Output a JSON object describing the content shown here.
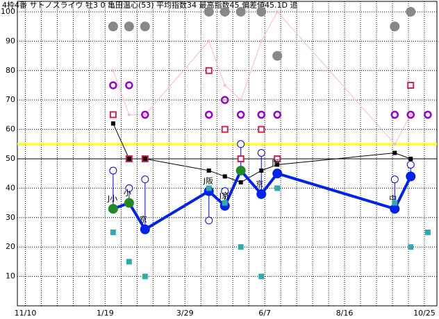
{
  "chart_data": {
    "type": "line",
    "title": "4枠4番 サトノスライヴ 牡3 0 亀田温心(53) 平均指数34 最高指数45 偏差値45.1D 追",
    "x": [
      77,
      91,
      105,
      161,
      175,
      189,
      207,
      221,
      324,
      338,
      353
    ],
    "xlim": [
      -7,
      361
    ],
    "xticks": [
      {
        "value": 0,
        "label": "11/10"
      },
      {
        "value": 70,
        "label": "1/19"
      },
      {
        "value": 140,
        "label": "3/29"
      },
      {
        "value": 210,
        "label": "6/7"
      },
      {
        "value": 280,
        "label": "8/16"
      },
      {
        "value": 350,
        "label": "10/25"
      }
    ],
    "ylim": [
      0,
      104
    ],
    "yticks": [
      10,
      20,
      30,
      40,
      50,
      60,
      70,
      80,
      90,
      100
    ],
    "grid": true,
    "reference_lines": [
      {
        "value": 55,
        "color": "#ffff22"
      },
      {
        "value": 50,
        "color": "#000000"
      }
    ],
    "series": [
      {
        "marker": "big-dot",
        "line": false,
        "color": "#888888",
        "values": [
          95,
          95,
          95,
          100,
          100,
          100,
          100,
          85,
          95,
          100,
          null
        ]
      },
      {
        "marker": "small-dot",
        "line": true,
        "color": "#ffb6c8",
        "values": [
          80,
          65,
          65,
          90,
          75,
          70,
          90,
          100,
          55,
          65,
          null
        ]
      },
      {
        "marker": "ring",
        "line": false,
        "color": "#9900cc",
        "values": [
          75,
          75,
          65,
          65,
          70,
          65,
          65,
          65,
          65,
          65,
          65
        ]
      },
      {
        "marker": "box",
        "line": false,
        "color": "#cc2255",
        "values": [
          65,
          50,
          50,
          80,
          60,
          50,
          60,
          50,
          null,
          75,
          null
        ]
      },
      {
        "marker": "small-square",
        "line": true,
        "color": "#000000",
        "values": [
          62,
          50,
          50,
          46,
          44,
          42,
          46,
          48,
          52,
          50,
          null
        ]
      },
      {
        "marker": "hollow",
        "line": false,
        "stem_to": 6,
        "color": "#0000ee",
        "values": [
          46,
          40,
          43,
          29,
          39,
          55,
          52,
          45,
          43,
          48,
          null
        ]
      },
      {
        "marker": "big-dot",
        "line": true,
        "color": "#0022ee",
        "highlight_color": "#228822",
        "highlight": [
          true,
          true,
          false,
          false,
          false,
          true,
          false,
          false,
          false,
          false,
          false
        ],
        "values": [
          33,
          35,
          26,
          39,
          34,
          46,
          38,
          45,
          33,
          44,
          null
        ],
        "point_labels": [
          "J小",
          "小",
          "京",
          "J阪",
          "J京",
          null,
          "京",
          "阪",
          "中",
          null,
          null
        ]
      },
      {
        "marker": "square",
        "line": false,
        "color": "#33aaaa",
        "values": [
          25,
          15,
          10,
          40,
          35,
          20,
          10,
          40,
          35,
          20,
          25
        ]
      }
    ]
  }
}
